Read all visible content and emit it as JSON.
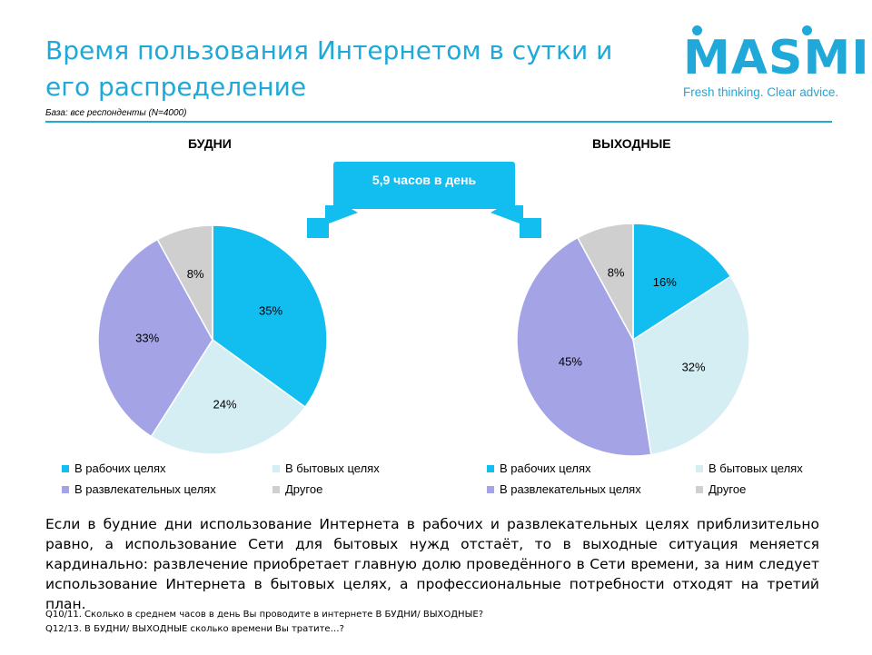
{
  "title": "Время пользования Интернетом в сутки и его распределение",
  "base_note": "База: все респонденты (N=4000)",
  "logo": {
    "brand": "MASMI",
    "tagline": "Fresh thinking. Clear advice."
  },
  "banner": "5,9 часов в день",
  "colors": {
    "accent": "#1fa8d8",
    "work": "#12bdf0",
    "household": "#d4eef3",
    "entertainment": "#a3a3e6",
    "other": "#cfcfcf"
  },
  "legend_labels": [
    "В рабочих целях",
    "В бытовых целях",
    "В развлекательных целях",
    "Другое"
  ],
  "chart_data": [
    {
      "type": "pie",
      "title": "БУДНИ",
      "categories": [
        "В рабочих целях",
        "В бытовых целях",
        "В развлекательных целях",
        "Другое"
      ],
      "values": [
        35,
        24,
        33,
        8
      ],
      "labels": [
        "35%",
        "24%",
        "33%",
        "8%"
      ],
      "legend": "bottom"
    },
    {
      "type": "pie",
      "title": "ВЫХОДНЫЕ",
      "categories": [
        "В рабочих целях",
        "В бытовых целях",
        "В развлекательных целях",
        "Другое"
      ],
      "values": [
        16,
        32,
        45,
        8
      ],
      "labels": [
        "16%",
        "32%",
        "45%",
        "8%"
      ],
      "legend": "bottom"
    }
  ],
  "body_text": "Если в будние дни использование Интернета в рабочих и развлекательных целях приблизительно равно, а использование Сети для бытовых нужд отстаёт, то в выходные ситуация меняется кардинально: развлечение приобретает главную долю проведённого в Сети времени, за ним следует использование Интернета в бытовых целях, а профессиональные потребности отходят на третий план.",
  "footnotes": [
    "Q10/11. Сколько в среднем часов в день  Вы проводите  в интернете  В БУДНИ/ ВЫХОДНЫЕ?",
    "Q12/13. В БУДНИ/  ВЫХОДНЫЕ  сколько времени  Вы тратите…?"
  ]
}
